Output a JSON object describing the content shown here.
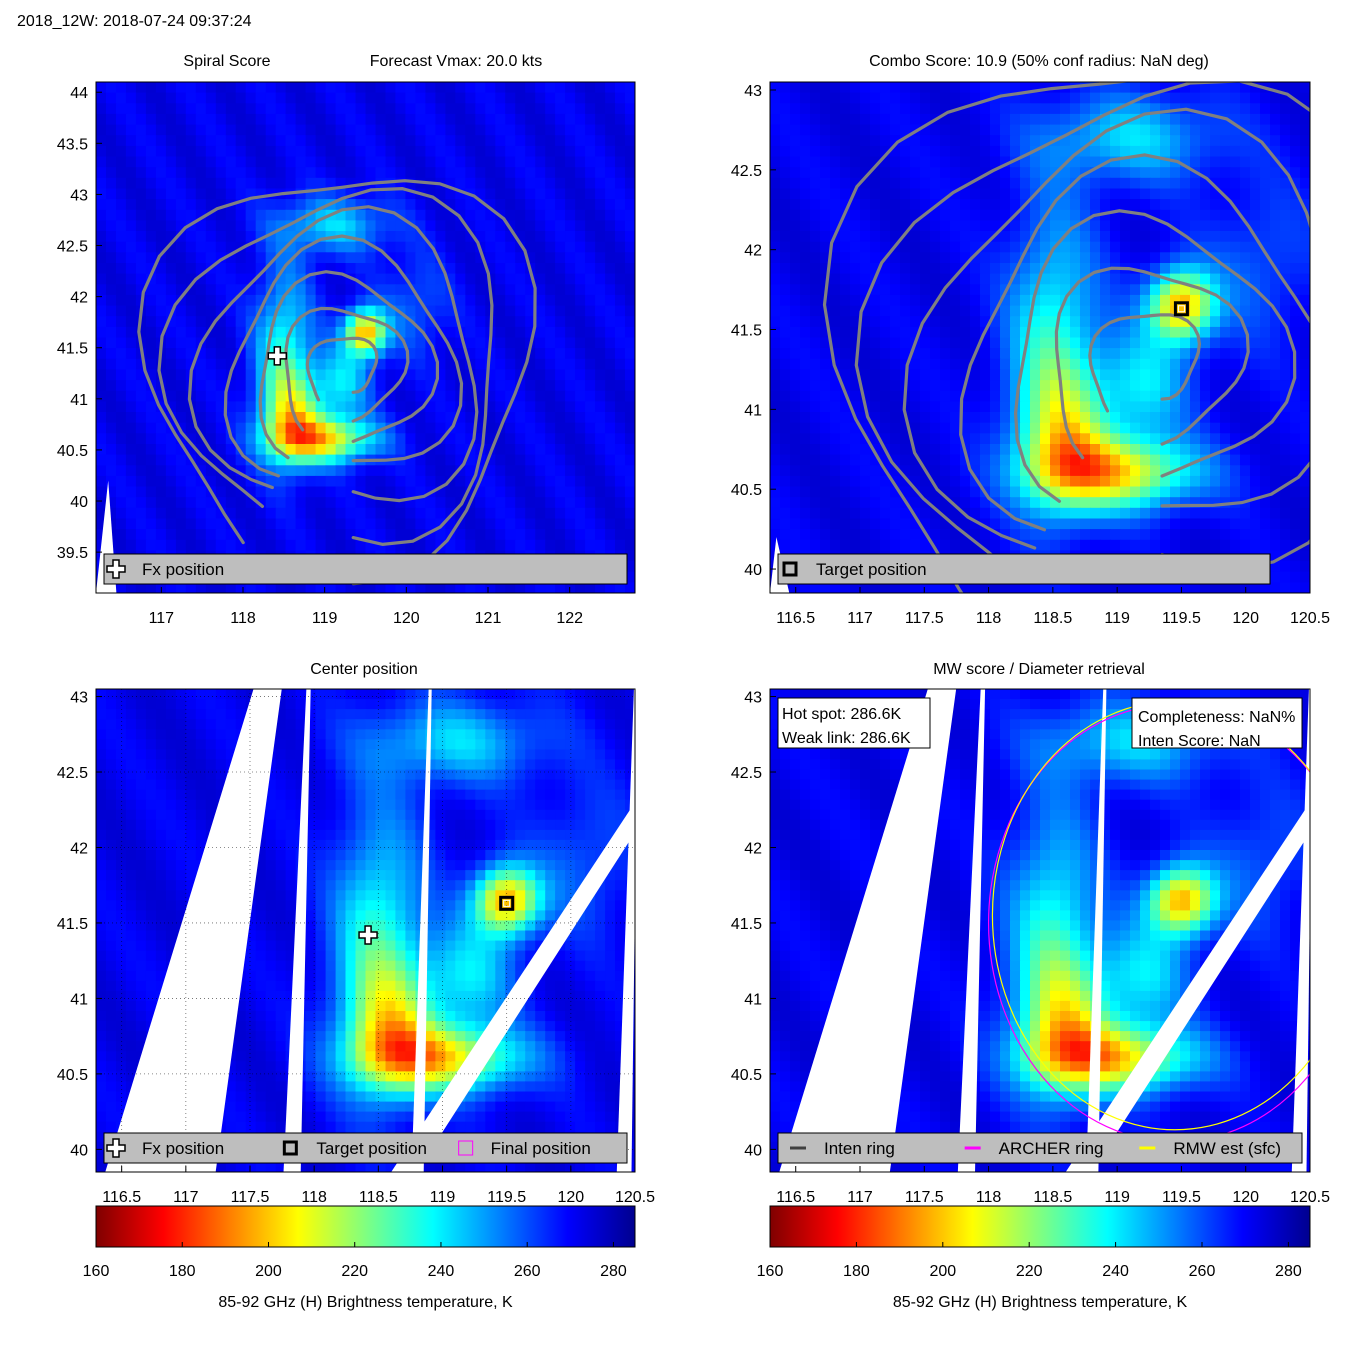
{
  "figure_title": "2018_12W: 2018-07-24 09:37:24",
  "colorscale": [
    "#7f0000",
    "#ff0000",
    "#ff8000",
    "#ffff00",
    "#80ff80",
    "#00ffff",
    "#0080ff",
    "#0000ff",
    "#00008f"
  ],
  "colors": {
    "contour": "#808080",
    "legend_bg": "#bebebe",
    "missing": "#ffffff",
    "inten_ring": "#404040",
    "archer_ring": "#ff00ff",
    "rmw_ring": "#ffff00"
  },
  "storm": {
    "target": [
      119.5,
      41.63
    ],
    "fx": [
      118.42,
      41.42
    ]
  },
  "chart_data": [
    {
      "type": "heatmap",
      "id": "spiral",
      "title": "Spiral Score",
      "subtitle": "Forecast Vmax: 20.0 kts",
      "xlim": [
        116.2,
        122.8
      ],
      "ylim": [
        39.1,
        44.1
      ],
      "xticks": [
        117,
        118,
        119,
        120,
        121,
        122
      ],
      "yticks": [
        39.5,
        40,
        40.5,
        41,
        41.5,
        42,
        42.5,
        43,
        43.5,
        44
      ],
      "legend": [
        {
          "symbol": "plus",
          "label": "Fx position"
        }
      ],
      "legend_position": "bottom",
      "markers": [
        {
          "symbol": "plus",
          "x": 118.42,
          "y": 41.42
        }
      ],
      "contours": true
    },
    {
      "type": "heatmap",
      "id": "combo",
      "title": "Combo Score: 10.9  (50% conf radius: NaN deg)",
      "xlim": [
        116.3,
        120.5
      ],
      "ylim": [
        39.85,
        43.05
      ],
      "xticks": [
        116.5,
        117,
        117.5,
        118,
        118.5,
        119,
        119.5,
        120,
        120.5
      ],
      "yticks": [
        40,
        40.5,
        41,
        41.5,
        42,
        42.5,
        43
      ],
      "legend": [
        {
          "symbol": "square",
          "label": "Target position"
        }
      ],
      "legend_position": "bottom",
      "markers": [
        {
          "symbol": "square",
          "x": 119.5,
          "y": 41.63
        }
      ],
      "contours": true
    },
    {
      "type": "heatmap",
      "id": "center",
      "title": "Center position",
      "xlim": [
        116.3,
        120.5
      ],
      "ylim": [
        39.85,
        43.05
      ],
      "xticks": [
        116.5,
        117,
        117.5,
        118,
        118.5,
        119,
        119.5,
        120,
        120.5
      ],
      "yticks": [
        40,
        40.5,
        41,
        41.5,
        42,
        42.5,
        43
      ],
      "grid": true,
      "legend": [
        {
          "symbol": "plus",
          "label": "Fx position"
        },
        {
          "symbol": "square",
          "label": "Target position"
        },
        {
          "symbol": "magenta-square",
          "label": "Final position"
        }
      ],
      "legend_position": "bottom",
      "markers": [
        {
          "symbol": "plus",
          "x": 118.42,
          "y": 41.42
        },
        {
          "symbol": "square",
          "x": 119.5,
          "y": 41.63
        }
      ],
      "colorbar": {
        "ticks": [
          160,
          180,
          200,
          220,
          240,
          260,
          280
        ],
        "range": [
          160,
          285
        ],
        "label": "85-92 GHz (H) Brightness temperature, K"
      }
    },
    {
      "type": "heatmap",
      "id": "mw",
      "title": "MW score / Diameter retrieval",
      "xlim": [
        116.3,
        120.5
      ],
      "ylim": [
        39.85,
        43.05
      ],
      "xticks": [
        116.5,
        117,
        117.5,
        118,
        118.5,
        119,
        119.5,
        120,
        120.5
      ],
      "yticks": [
        40,
        40.5,
        41,
        41.5,
        42,
        42.5,
        43
      ],
      "annotations": {
        "left": [
          "Hot spot: 286.6K",
          "Weak link: 286.6K"
        ],
        "right": [
          "Completeness: NaN%",
          "Inten Score: NaN"
        ]
      },
      "legend": [
        {
          "symbol": "inten-line",
          "label": "Inten ring"
        },
        {
          "symbol": "archer-line",
          "label": "ARCHER ring"
        },
        {
          "symbol": "rmw-line",
          "label": "RMW est (sfc)"
        }
      ],
      "legend_position": "bottom",
      "rings": [
        {
          "name": "ARCHER ring",
          "center": [
            119.45,
            41.5
          ],
          "radius_deg": 1.45
        },
        {
          "name": "RMW est (sfc)",
          "center": [
            119.45,
            41.55
          ],
          "radius_deg": 1.42
        }
      ],
      "colorbar": {
        "ticks": [
          160,
          180,
          200,
          220,
          240,
          260,
          280
        ],
        "range": [
          160,
          285
        ],
        "label": "85-92 GHz (H) Brightness temperature, K"
      }
    }
  ]
}
